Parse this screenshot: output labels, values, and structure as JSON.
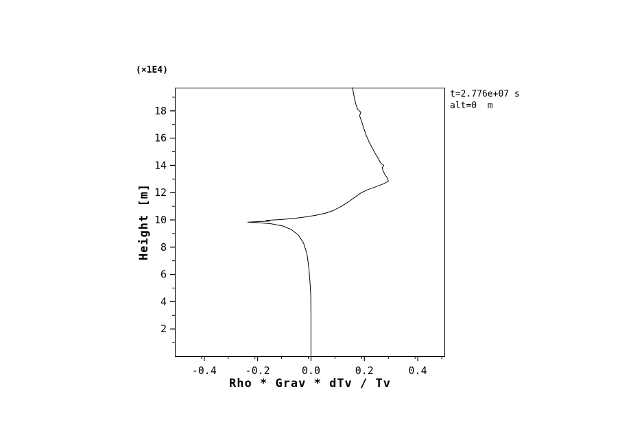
{
  "figure": {
    "unit_label": "(×1E4)",
    "annotation_line1": "t=2.776e+07 s",
    "annotation_line2": "alt=0  m",
    "xlabel": "Rho * Grav * dTv / Tv",
    "ylabel": "Height [m]"
  },
  "colors": {
    "background": "#ffffff",
    "axis": "#000000",
    "line": "#000000",
    "text": "#000000"
  },
  "chart_data": {
    "type": "line",
    "title": "",
    "xlabel": "Rho * Grav * dTv / Tv",
    "ylabel": "Height [m]",
    "y_unit_multiplier": "(×1E4)",
    "annotations": [
      "t=2.776e+07 s",
      "alt=0 m"
    ],
    "xlim": [
      -0.51,
      0.5
    ],
    "ylim": [
      0,
      19.7
    ],
    "grid": false,
    "legend": false,
    "x_ticks": [
      -0.4,
      -0.2,
      0.0,
      0.2,
      0.4
    ],
    "x_tick_labels": [
      "-0.4",
      "-0.2",
      "0.0",
      "0.2",
      "0.4"
    ],
    "x_minor_step": 0.1,
    "y_ticks": [
      2,
      4,
      6,
      8,
      10,
      12,
      14,
      16,
      18
    ],
    "y_tick_labels": [
      "2",
      "4",
      "6",
      "8",
      "10",
      "12",
      "14",
      "16",
      "18"
    ],
    "y_minor_step": 1,
    "series": [
      {
        "name": "rho-grav-dTv-over-Tv-profile",
        "points": [
          [
            0.0,
            0.05
          ],
          [
            0.0,
            3.0
          ],
          [
            -0.001,
            4.5
          ],
          [
            -0.004,
            5.5
          ],
          [
            -0.008,
            6.5
          ],
          [
            -0.015,
            7.5
          ],
          [
            -0.028,
            8.3
          ],
          [
            -0.048,
            8.9
          ],
          [
            -0.075,
            9.3
          ],
          [
            -0.105,
            9.55
          ],
          [
            -0.15,
            9.72
          ],
          [
            -0.2,
            9.8
          ],
          [
            -0.237,
            9.84
          ],
          [
            -0.155,
            9.91
          ],
          [
            -0.168,
            9.96
          ],
          [
            -0.105,
            10.04
          ],
          [
            -0.06,
            10.12
          ],
          [
            -0.02,
            10.22
          ],
          [
            0.02,
            10.35
          ],
          [
            0.055,
            10.5
          ],
          [
            0.085,
            10.7
          ],
          [
            0.11,
            10.95
          ],
          [
            0.135,
            11.25
          ],
          [
            0.16,
            11.6
          ],
          [
            0.185,
            11.95
          ],
          [
            0.21,
            12.2
          ],
          [
            0.245,
            12.45
          ],
          [
            0.272,
            12.65
          ],
          [
            0.29,
            12.85
          ],
          [
            0.287,
            13.05
          ],
          [
            0.278,
            13.3
          ],
          [
            0.27,
            13.6
          ],
          [
            0.267,
            13.85
          ],
          [
            0.273,
            14.0
          ],
          [
            0.262,
            14.15
          ],
          [
            0.252,
            14.5
          ],
          [
            0.24,
            14.9
          ],
          [
            0.229,
            15.3
          ],
          [
            0.217,
            15.75
          ],
          [
            0.207,
            16.2
          ],
          [
            0.198,
            16.7
          ],
          [
            0.19,
            17.2
          ],
          [
            0.182,
            17.65
          ],
          [
            0.187,
            17.9
          ],
          [
            0.175,
            18.1
          ],
          [
            0.168,
            18.5
          ],
          [
            0.163,
            18.9
          ],
          [
            0.159,
            19.3
          ],
          [
            0.156,
            19.7
          ]
        ]
      }
    ]
  }
}
